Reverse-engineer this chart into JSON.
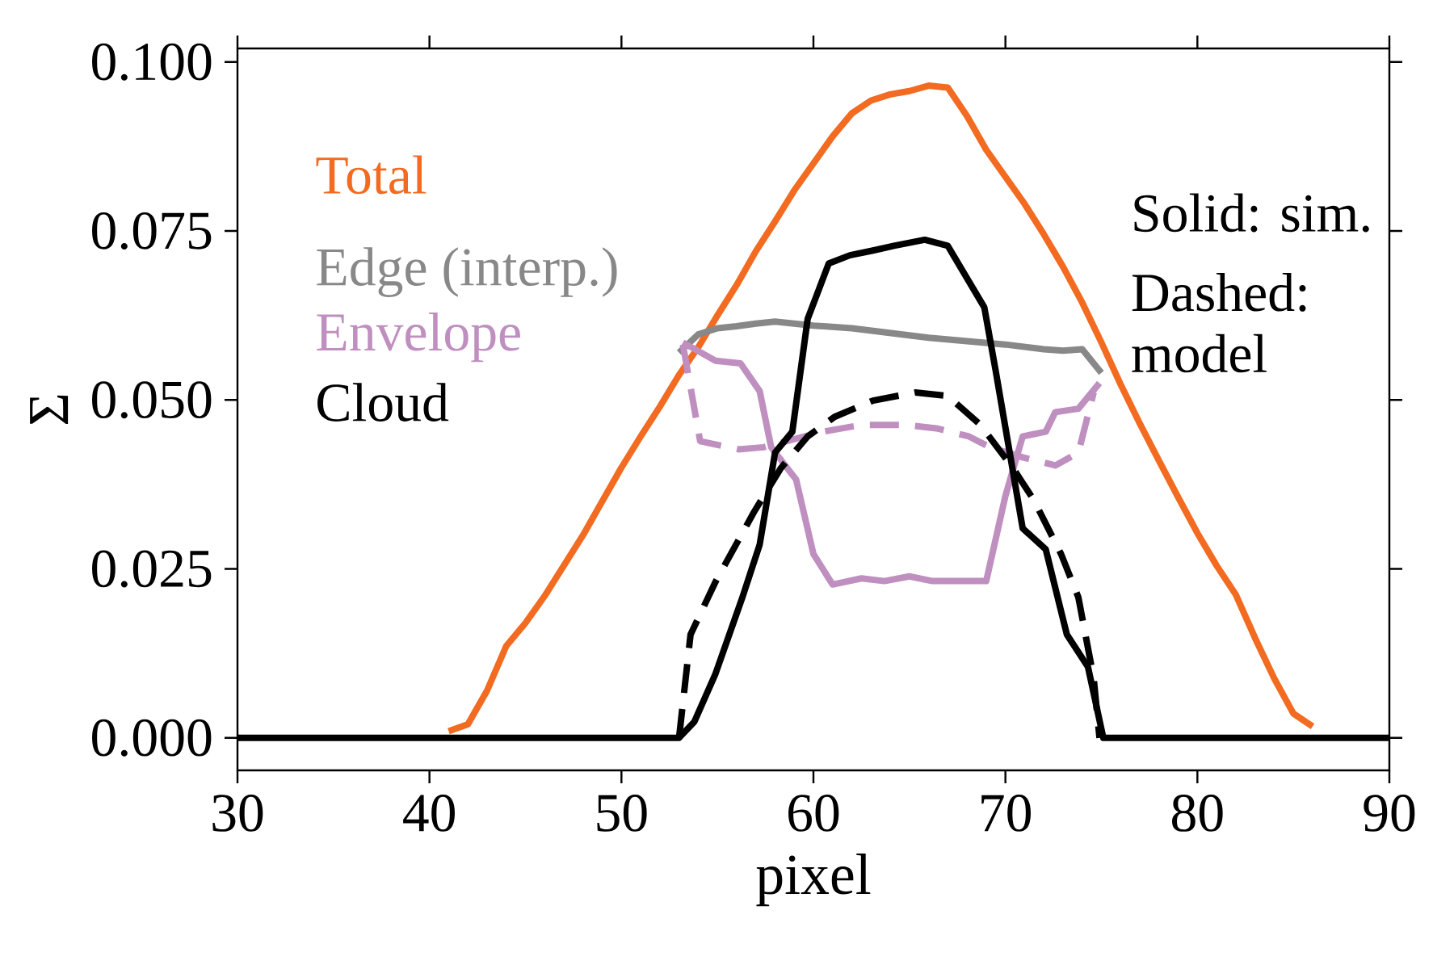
{
  "chart_data": {
    "type": "line",
    "xlabel": "pixel",
    "ylabel": "Σ",
    "xlim": [
      30,
      90
    ],
    "ylim": [
      -0.0048,
      0.102
    ],
    "xticks": [
      30,
      40,
      50,
      60,
      70,
      80,
      90
    ],
    "yticks": [
      {
        "value": 0,
        "label": "0.000"
      },
      {
        "value": 0.025,
        "label": "0.025"
      },
      {
        "value": 0.05,
        "label": "0.050"
      },
      {
        "value": 0.075,
        "label": "0.075"
      },
      {
        "value": 0.1,
        "label": "0.100"
      }
    ],
    "grid": false,
    "legend": "top left",
    "annotations": [
      "Solid: sim.",
      "Dashed: model"
    ],
    "series": [
      {
        "name": "Total",
        "color": "#f26b21",
        "line_style": "solid",
        "x": [
          41,
          42,
          43,
          44,
          45,
          46,
          47,
          48,
          49,
          50,
          51,
          52,
          53,
          54,
          55,
          56,
          57,
          58,
          59,
          60,
          61,
          62,
          63,
          64,
          65,
          66,
          67,
          68,
          69,
          70,
          71,
          72,
          73,
          74,
          75,
          76,
          77,
          78,
          79,
          80,
          81,
          82,
          83,
          84,
          85,
          86
        ],
        "values": [
          0.001,
          0.002,
          0.007,
          0.0136,
          0.017,
          0.021,
          0.0255,
          0.03,
          0.035,
          0.04,
          0.0446,
          0.049,
          0.0537,
          0.0578,
          0.0625,
          0.067,
          0.072,
          0.0764,
          0.081,
          0.085,
          0.089,
          0.0924,
          0.0943,
          0.0952,
          0.0957,
          0.0965,
          0.0962,
          0.092,
          0.087,
          0.083,
          0.079,
          0.0745,
          0.0697,
          0.0644,
          0.0585,
          0.0523,
          0.0465,
          0.041,
          0.0356,
          0.0303,
          0.0255,
          0.0212,
          0.0148,
          0.0088,
          0.0036,
          0.0017
        ]
      },
      {
        "name": "Edge (interp.)",
        "color": "#888888",
        "line_style": "solid",
        "x": [
          53,
          54,
          55,
          56,
          57,
          58,
          59,
          60,
          62,
          64,
          66,
          68,
          70,
          72,
          73,
          74,
          75
        ],
        "values": [
          0.057,
          0.0597,
          0.0606,
          0.0609,
          0.0613,
          0.0616,
          0.0613,
          0.061,
          0.0606,
          0.0599,
          0.0592,
          0.0587,
          0.0582,
          0.0575,
          0.0573,
          0.0575,
          0.054
        ]
      },
      {
        "name": "Envelope",
        "color": "#bf8fc0",
        "line_style": "solid",
        "x": [
          53.2,
          54.9,
          56.2,
          57.2,
          57.8,
          59.1,
          60.0,
          61.0,
          62.5,
          63.7,
          65.0,
          66.2,
          69.0,
          70.0,
          70.9,
          72.1,
          72.6,
          73.8,
          74.9
        ],
        "values": [
          0.0585,
          0.0558,
          0.0554,
          0.0513,
          0.043,
          0.0382,
          0.0272,
          0.0227,
          0.0236,
          0.0232,
          0.0239,
          0.0232,
          0.0232,
          0.0358,
          0.0446,
          0.0453,
          0.0482,
          0.0487,
          0.0525
        ]
      },
      {
        "color": "#bf8fc0",
        "line_style": "dashed",
        "x": [
          53.2,
          54.1,
          56.1,
          57.4,
          58.6,
          60.5,
          62.5,
          64.8,
          66.4,
          68.1,
          69.2,
          70.9,
          72.6,
          73.8,
          74.6
        ],
        "values": [
          0.0582,
          0.0439,
          0.0427,
          0.043,
          0.0439,
          0.0453,
          0.0463,
          0.0463,
          0.0458,
          0.0446,
          0.043,
          0.0415,
          0.0403,
          0.0422,
          0.0511
        ]
      },
      {
        "name": "Cloud",
        "color": "#000000",
        "line_style": "solid",
        "x": [
          30,
          53.0,
          53.8,
          54.9,
          56.3,
          57.2,
          58.0,
          58.9,
          59.7,
          60.8,
          61.9,
          63.1,
          64.2,
          65.8,
          67.0,
          68.9,
          69.5,
          70.9,
          72.1,
          73.2,
          74.3,
          75.1,
          90
        ],
        "values": [
          0,
          0,
          0.0024,
          0.0095,
          0.0208,
          0.0286,
          0.0422,
          0.0453,
          0.062,
          0.0702,
          0.0714,
          0.0721,
          0.0728,
          0.0737,
          0.0728,
          0.0637,
          0.0542,
          0.031,
          0.0279,
          0.0153,
          0.0105,
          0,
          0
        ]
      },
      {
        "color": "#000000",
        "line_style": "dashed",
        "x": [
          53.0,
          53.6,
          54.9,
          56.9,
          58.3,
          59.7,
          61.1,
          63.1,
          65.3,
          67.0,
          68.7,
          70.4,
          71.5,
          72.9,
          73.8,
          74.6,
          74.9
        ],
        "values": [
          0,
          0.0153,
          0.0231,
          0.0334,
          0.0399,
          0.0446,
          0.0475,
          0.0499,
          0.0511,
          0.0506,
          0.0463,
          0.0399,
          0.0351,
          0.0272,
          0.0208,
          0.0088,
          0
        ]
      }
    ]
  }
}
